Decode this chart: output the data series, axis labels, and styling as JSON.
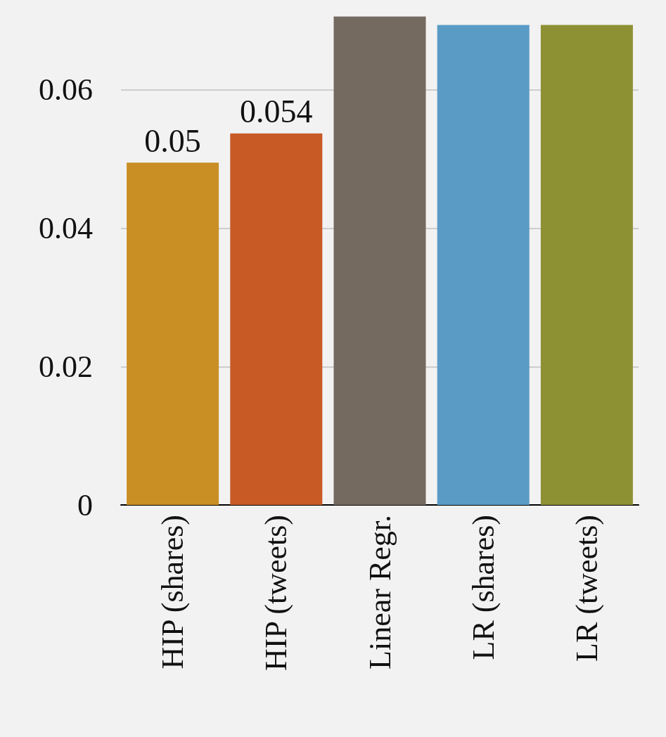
{
  "chart_data": {
    "type": "bar",
    "categories": [
      "HIP (shares)",
      "HIP (tweets)",
      "Linear Regr.",
      "LR (shares)",
      "LR (tweets)"
    ],
    "values": [
      0.0495,
      0.0537,
      0.0706,
      0.0694,
      0.0694
    ],
    "colors": [
      "#c98f25",
      "#c85a26",
      "#746a60",
      "#5a9bc6",
      "#8e9034"
    ],
    "value_labels": [
      "0.05",
      "0.054",
      null,
      null,
      null
    ],
    "ylim": [
      0,
      0.073
    ],
    "yticks": [
      0,
      0.02,
      0.04,
      0.06
    ],
    "grid": "y"
  }
}
